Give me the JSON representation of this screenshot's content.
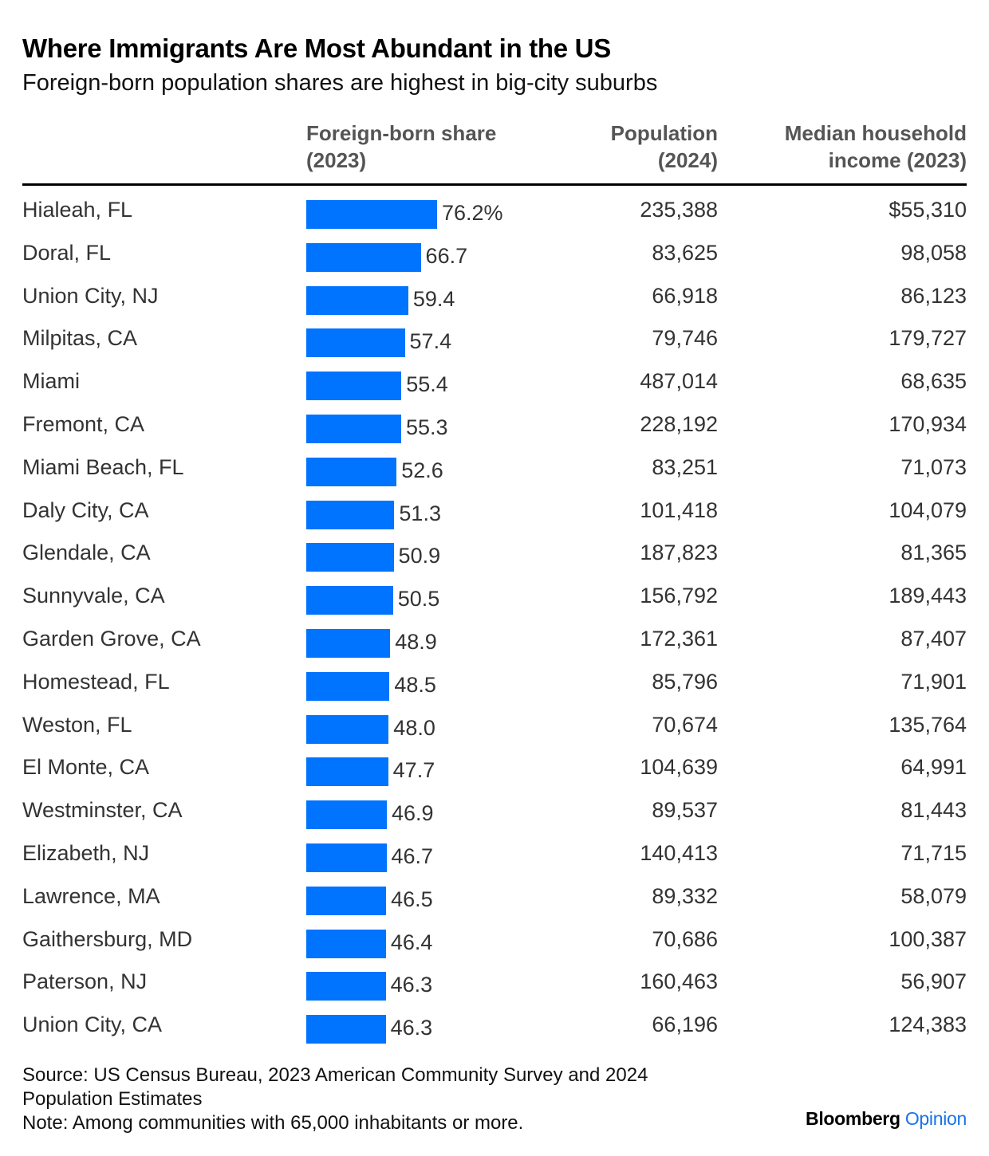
{
  "title": "Where Immigrants Are Most Abundant in the US",
  "subtitle": "Foreign-born population shares are highest in big-city suburbs",
  "headers": {
    "share_line1": "Foreign-born share",
    "share_line2": "(2023)",
    "pop_line1": "Population",
    "pop_line2": "(2024)",
    "income_line1": "Median household",
    "income_line2": "income (2023)"
  },
  "source": {
    "line1": "Source: US Census Bureau, 2023 American Community Survey and 2024",
    "line2": "Population Estimates",
    "line3": "Note: Among communities with 65,000 inhabitants or more."
  },
  "brand": {
    "bloomberg": "Bloomberg",
    "opinion": "Opinion"
  },
  "colors": {
    "bar": "#0073ff",
    "header_text": "#555555",
    "body_text": "#333333",
    "brand_accent": "#1a73e8"
  },
  "chart_data": {
    "type": "table",
    "value_max": 100,
    "rows": [
      {
        "name": "Hialeah, FL",
        "share": 76.2,
        "share_label": "76.2%",
        "population": "235,388",
        "income": "$55,310"
      },
      {
        "name": "Doral, FL",
        "share": 66.7,
        "share_label": "66.7",
        "population": "83,625",
        "income": "98,058"
      },
      {
        "name": "Union City, NJ",
        "share": 59.4,
        "share_label": "59.4",
        "population": "66,918",
        "income": "86,123"
      },
      {
        "name": "Milpitas, CA",
        "share": 57.4,
        "share_label": "57.4",
        "population": "79,746",
        "income": "179,727"
      },
      {
        "name": "Miami",
        "share": 55.4,
        "share_label": "55.4",
        "population": "487,014",
        "income": "68,635"
      },
      {
        "name": "Fremont, CA",
        "share": 55.3,
        "share_label": "55.3",
        "population": "228,192",
        "income": "170,934"
      },
      {
        "name": "Miami Beach, FL",
        "share": 52.6,
        "share_label": "52.6",
        "population": "83,251",
        "income": "71,073"
      },
      {
        "name": "Daly City, CA",
        "share": 51.3,
        "share_label": "51.3",
        "population": "101,418",
        "income": "104,079"
      },
      {
        "name": "Glendale, CA",
        "share": 50.9,
        "share_label": "50.9",
        "population": "187,823",
        "income": "81,365"
      },
      {
        "name": "Sunnyvale, CA",
        "share": 50.5,
        "share_label": "50.5",
        "population": "156,792",
        "income": "189,443"
      },
      {
        "name": "Garden Grove, CA",
        "share": 48.9,
        "share_label": "48.9",
        "population": "172,361",
        "income": "87,407"
      },
      {
        "name": "Homestead, FL",
        "share": 48.5,
        "share_label": "48.5",
        "population": "85,796",
        "income": "71,901"
      },
      {
        "name": "Weston, FL",
        "share": 48.0,
        "share_label": "48.0",
        "population": "70,674",
        "income": "135,764"
      },
      {
        "name": "El Monte, CA",
        "share": 47.7,
        "share_label": "47.7",
        "population": "104,639",
        "income": "64,991"
      },
      {
        "name": "Westminster, CA",
        "share": 46.9,
        "share_label": "46.9",
        "population": "89,537",
        "income": "81,443"
      },
      {
        "name": "Elizabeth, NJ",
        "share": 46.7,
        "share_label": "46.7",
        "population": "140,413",
        "income": "71,715"
      },
      {
        "name": "Lawrence, MA",
        "share": 46.5,
        "share_label": "46.5",
        "population": "89,332",
        "income": "58,079"
      },
      {
        "name": "Gaithersburg, MD",
        "share": 46.4,
        "share_label": "46.4",
        "population": "70,686",
        "income": "100,387"
      },
      {
        "name": "Paterson, NJ",
        "share": 46.3,
        "share_label": "46.3",
        "population": "160,463",
        "income": "56,907"
      },
      {
        "name": "Union City, CA",
        "share": 46.3,
        "share_label": "46.3",
        "population": "66,196",
        "income": "124,383"
      }
    ]
  }
}
